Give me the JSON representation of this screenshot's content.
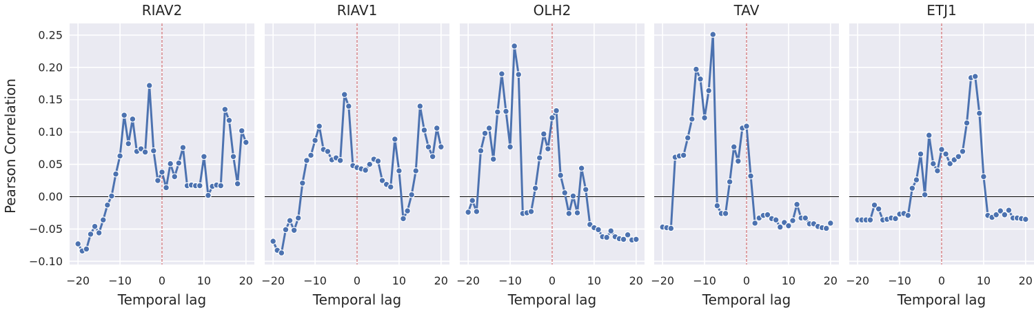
{
  "figure": {
    "ylabel": "Pearson Correlation",
    "xlabel": "Temporal lag"
  },
  "colors": {
    "line": "#4c72b0",
    "marker_edge": "#ffffff",
    "panel_bg": "#eaeaf2",
    "grid": "#ffffff",
    "zero_line": "#000000",
    "lag_zero_line": "#c44e52"
  },
  "chart_data": [
    {
      "type": "line",
      "title": "RIAV2",
      "xlabel": "Temporal lag",
      "ylabel": "Pearson Correlation",
      "xlim": [
        -22,
        22
      ],
      "ylim": [
        -0.105,
        0.268
      ],
      "xticks": [
        -20,
        -10,
        0,
        10,
        20
      ],
      "xtick_labels": [
        "−20",
        "−10",
        "0",
        "10",
        "20"
      ],
      "yticks": [
        -0.1,
        -0.05,
        0.0,
        0.05,
        0.1,
        0.15,
        0.2,
        0.25
      ],
      "ytick_labels": [
        "−0.10",
        "−0.05",
        "0.00",
        "0.05",
        "0.10",
        "0.15",
        "0.20",
        "0.25"
      ],
      "grid": true,
      "x": [
        -20,
        -19,
        -18,
        -17,
        -16,
        -15,
        -14,
        -13,
        -12,
        -11,
        -10,
        -9,
        -8,
        -7,
        -6,
        -5,
        -4,
        -3,
        -2,
        -1,
        0,
        1,
        2,
        3,
        4,
        5,
        6,
        7,
        8,
        9,
        10,
        11,
        12,
        13,
        14,
        15,
        16,
        17,
        18,
        19,
        20
      ],
      "y": [
        -0.073,
        -0.084,
        -0.081,
        -0.058,
        -0.046,
        -0.056,
        -0.036,
        -0.013,
        0.001,
        0.035,
        0.063,
        0.126,
        0.082,
        0.12,
        0.07,
        0.074,
        0.069,
        0.172,
        0.071,
        0.025,
        0.038,
        0.014,
        0.051,
        0.031,
        0.052,
        0.076,
        0.017,
        0.018,
        0.017,
        0.017,
        0.062,
        0.002,
        0.016,
        0.018,
        0.017,
        0.135,
        0.118,
        0.062,
        0.02,
        0.102,
        0.084
      ]
    },
    {
      "type": "line",
      "title": "RIAV1",
      "xlabel": "Temporal lag",
      "xlim": [
        -22,
        22
      ],
      "ylim": [
        -0.105,
        0.268
      ],
      "xticks": [
        -20,
        -10,
        0,
        10,
        20
      ],
      "xtick_labels": [
        "−20",
        "−10",
        "0",
        "10",
        "20"
      ],
      "grid": true,
      "x": [
        -20,
        -19,
        -18,
        -17,
        -16,
        -15,
        -14,
        -13,
        -12,
        -11,
        -10,
        -9,
        -8,
        -7,
        -6,
        -5,
        -4,
        -3,
        -2,
        -1,
        0,
        1,
        2,
        3,
        4,
        5,
        6,
        7,
        8,
        9,
        10,
        11,
        12,
        13,
        14,
        15,
        16,
        17,
        18,
        19,
        20
      ],
      "y": [
        -0.069,
        -0.083,
        -0.087,
        -0.051,
        -0.037,
        -0.052,
        -0.033,
        0.021,
        0.056,
        0.064,
        0.087,
        0.109,
        0.073,
        0.07,
        0.057,
        0.06,
        0.056,
        0.158,
        0.14,
        0.048,
        0.045,
        0.043,
        0.041,
        0.05,
        0.058,
        0.055,
        0.025,
        0.019,
        0.015,
        0.089,
        0.04,
        -0.034,
        -0.022,
        0.003,
        0.04,
        0.14,
        0.103,
        0.077,
        0.062,
        0.106,
        0.077
      ]
    },
    {
      "type": "line",
      "title": "OLH2",
      "xlabel": "Temporal lag",
      "xlim": [
        -22,
        22
      ],
      "ylim": [
        -0.105,
        0.268
      ],
      "xticks": [
        -20,
        -10,
        0,
        10,
        20
      ],
      "xtick_labels": [
        "−20",
        "−10",
        "0",
        "10",
        "20"
      ],
      "grid": true,
      "x": [
        -20,
        -19,
        -18,
        -17,
        -16,
        -15,
        -14,
        -13,
        -12,
        -11,
        -10,
        -9,
        -8,
        -7,
        -6,
        -5,
        -4,
        -3,
        -2,
        -1,
        0,
        1,
        2,
        3,
        4,
        5,
        6,
        7,
        8,
        9,
        10,
        11,
        12,
        13,
        14,
        15,
        16,
        17,
        18,
        19,
        20
      ],
      "y": [
        -0.024,
        -0.006,
        -0.023,
        0.071,
        0.098,
        0.106,
        0.058,
        0.131,
        0.19,
        0.132,
        0.077,
        0.233,
        0.189,
        -0.026,
        -0.025,
        -0.023,
        0.013,
        0.06,
        0.097,
        0.074,
        0.122,
        0.133,
        0.033,
        0.006,
        -0.026,
        0.001,
        -0.025,
        0.044,
        0.011,
        -0.043,
        -0.048,
        -0.051,
        -0.062,
        -0.063,
        -0.053,
        -0.062,
        -0.065,
        -0.066,
        -0.059,
        -0.067,
        -0.066
      ]
    },
    {
      "type": "line",
      "title": "TAV",
      "xlabel": "Temporal lag",
      "xlim": [
        -22,
        22
      ],
      "ylim": [
        -0.105,
        0.268
      ],
      "xticks": [
        -20,
        -10,
        0,
        10,
        20
      ],
      "xtick_labels": [
        "−20",
        "−10",
        "0",
        "10",
        "20"
      ],
      "grid": true,
      "x": [
        -20,
        -19,
        -18,
        -17,
        -16,
        -15,
        -14,
        -13,
        -12,
        -11,
        -10,
        -9,
        -8,
        -7,
        -6,
        -5,
        -4,
        -3,
        -2,
        -1,
        0,
        1,
        2,
        3,
        4,
        5,
        6,
        7,
        8,
        9,
        10,
        11,
        12,
        13,
        14,
        15,
        16,
        17,
        18,
        19,
        20
      ],
      "y": [
        -0.047,
        -0.048,
        -0.049,
        0.061,
        0.063,
        0.064,
        0.091,
        0.12,
        0.197,
        0.182,
        0.122,
        0.164,
        0.251,
        -0.014,
        -0.026,
        -0.026,
        0.023,
        0.077,
        0.055,
        0.106,
        0.109,
        0.032,
        -0.041,
        -0.033,
        -0.029,
        -0.028,
        -0.034,
        -0.036,
        -0.047,
        -0.04,
        -0.045,
        -0.037,
        -0.012,
        -0.033,
        -0.033,
        -0.042,
        -0.042,
        -0.046,
        -0.048,
        -0.049,
        -0.041
      ]
    },
    {
      "type": "line",
      "title": "ETJ1",
      "xlabel": "Temporal lag",
      "xlim": [
        -22,
        22
      ],
      "ylim": [
        -0.105,
        0.268
      ],
      "xticks": [
        -20,
        -10,
        0,
        10,
        20
      ],
      "xtick_labels": [
        "−20",
        "−10",
        "0",
        "10",
        "20"
      ],
      "grid": true,
      "x": [
        -20,
        -19,
        -18,
        -17,
        -16,
        -15,
        -14,
        -13,
        -12,
        -11,
        -10,
        -9,
        -8,
        -7,
        -6,
        -5,
        -4,
        -3,
        -2,
        -1,
        0,
        1,
        2,
        3,
        4,
        5,
        6,
        7,
        8,
        9,
        10,
        11,
        12,
        13,
        14,
        15,
        16,
        17,
        18,
        19,
        20
      ],
      "y": [
        -0.036,
        -0.036,
        -0.036,
        -0.036,
        -0.013,
        -0.019,
        -0.036,
        -0.035,
        -0.033,
        -0.034,
        -0.027,
        -0.026,
        -0.029,
        0.013,
        0.026,
        0.066,
        0.003,
        0.095,
        0.051,
        0.04,
        0.073,
        0.066,
        0.051,
        0.057,
        0.062,
        0.07,
        0.114,
        0.184,
        0.186,
        0.129,
        0.031,
        -0.029,
        -0.032,
        -0.028,
        -0.022,
        -0.028,
        -0.021,
        -0.033,
        -0.033,
        -0.034,
        -0.035
      ]
    }
  ]
}
